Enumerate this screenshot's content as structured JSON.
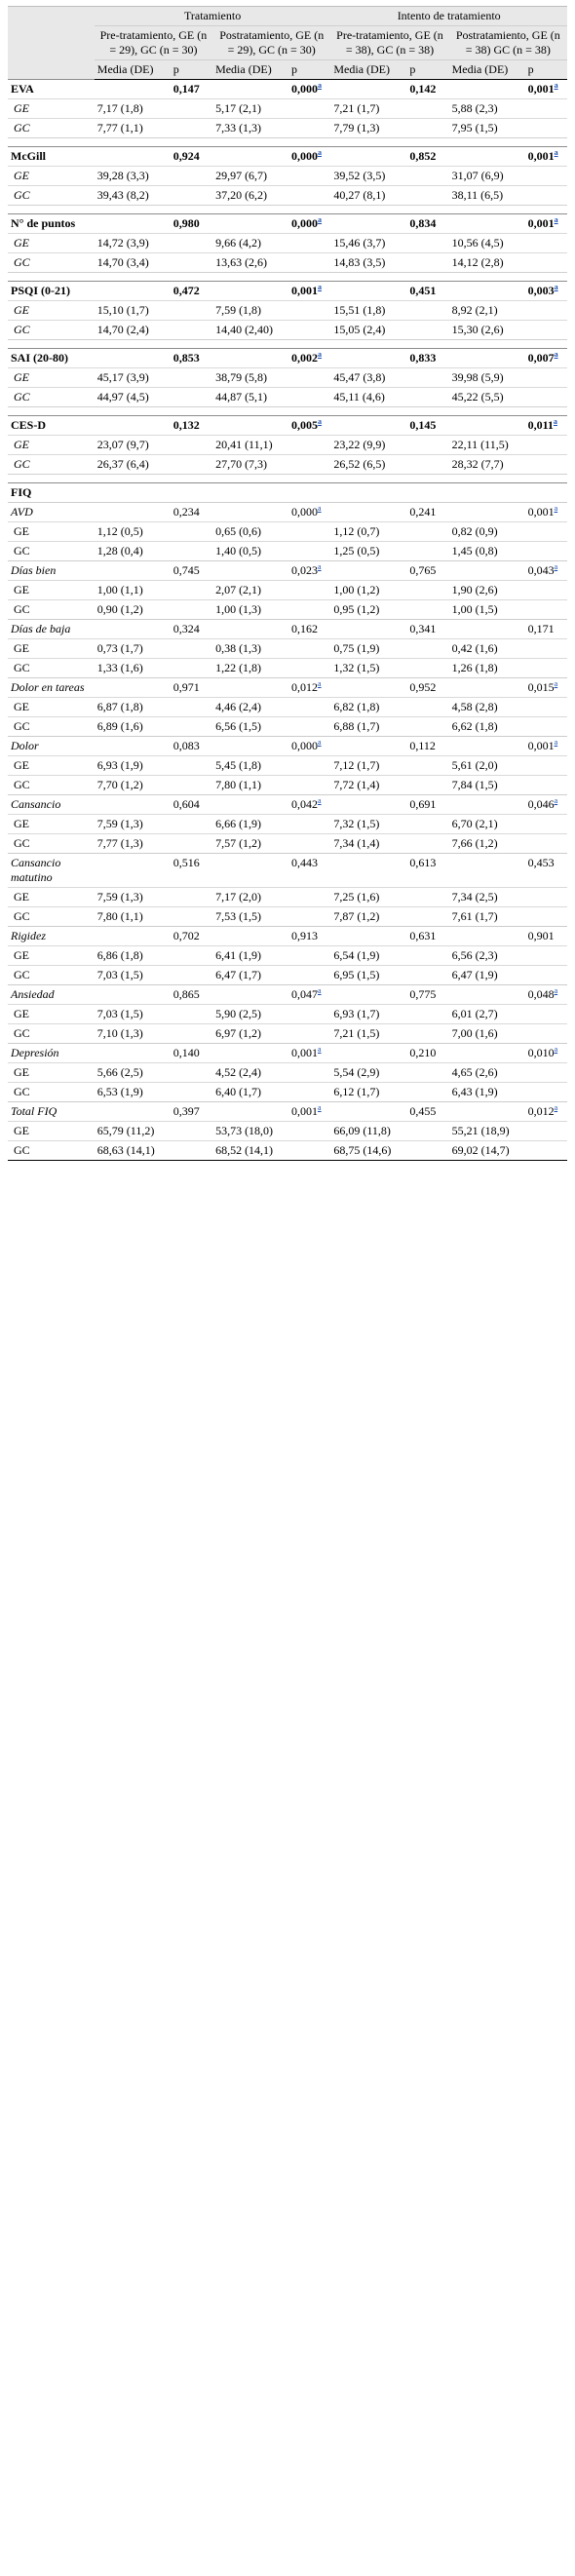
{
  "header": {
    "group_tratamiento": "Tratamiento",
    "group_intento": "Intento de tratamiento",
    "col_pre_trat": "Pre-tratamiento, GE (n = 29), GC (n = 30)",
    "col_post_trat": "Postratamiento, GE (n = 29), GC (n = 30)",
    "col_pre_int": "Pre-tratamiento, GE (n = 38), GC (n = 38)",
    "col_post_int": "Postratamiento, GE (n = 38) GC (n = 38)",
    "media": "Media (DE)",
    "p": "p"
  },
  "footnote_mark": "a",
  "sections": [
    {
      "title": "EVA",
      "p": [
        "0,147",
        "0,000",
        "0,142",
        "0,001"
      ],
      "sig": [
        false,
        true,
        false,
        true
      ],
      "rows": [
        {
          "label": "GE",
          "v": [
            "7,17 (1,8)",
            "5,17 (2,1)",
            "7,21 (1,7)",
            "5,88 (2,3)"
          ]
        },
        {
          "label": "GC",
          "v": [
            "7,77 (1,1)",
            "7,33 (1,3)",
            "7,79 (1,3)",
            "7,95 (1,5)"
          ]
        }
      ]
    },
    {
      "title": "McGill",
      "p": [
        "0,924",
        "0,000",
        "0,852",
        "0,001"
      ],
      "sig": [
        false,
        true,
        false,
        true
      ],
      "rows": [
        {
          "label": "GE",
          "v": [
            "39,28 (3,3)",
            "29,97 (6,7)",
            "39,52 (3,5)",
            "31,07 (6,9)"
          ]
        },
        {
          "label": "GC",
          "v": [
            "39,43 (8,2)",
            "37,20 (6,2)",
            "40,27 (8,1)",
            "38,11 (6,5)"
          ]
        }
      ]
    },
    {
      "title": "N° de puntos",
      "p": [
        "0,980",
        "0,000",
        "0,834",
        "0,001"
      ],
      "sig": [
        false,
        true,
        false,
        true
      ],
      "rows": [
        {
          "label": "GE",
          "v": [
            "14,72 (3,9)",
            "9,66 (4,2)",
            "15,46 (3,7)",
            "10,56 (4,5)"
          ]
        },
        {
          "label": "GC",
          "v": [
            "14,70 (3,4)",
            "13,63 (2,6)",
            "14,83 (3,5)",
            "14,12 (2,8)"
          ]
        }
      ]
    },
    {
      "title": "PSQI (0-21)",
      "p": [
        "0,472",
        "0,001",
        "0,451",
        "0,003"
      ],
      "sig": [
        false,
        true,
        false,
        true
      ],
      "rows": [
        {
          "label": "GE",
          "v": [
            "15,10 (1,7)",
            "7,59 (1,8)",
            "15,51 (1,8)",
            "8,92 (2,1)"
          ]
        },
        {
          "label": "GC",
          "v": [
            "14,70 (2,4)",
            "14,40 (2,40)",
            "15,05 (2,4)",
            "15,30 (2,6)"
          ]
        }
      ]
    },
    {
      "title": "SAI (20-80)",
      "p": [
        "0,853",
        "0,002",
        "0,833",
        "0,007"
      ],
      "sig": [
        false,
        true,
        false,
        true
      ],
      "rows": [
        {
          "label": "GE",
          "v": [
            "45,17 (3,9)",
            "38,79 (5,8)",
            "45,47 (3,8)",
            "39,98 (5,9)"
          ]
        },
        {
          "label": "GC",
          "v": [
            "44,97 (4,5)",
            "44,87 (5,1)",
            "45,11 (4,6)",
            "45,22 (5,5)"
          ]
        }
      ]
    },
    {
      "title": "CES-D",
      "p": [
        "0,132",
        "0,005",
        "0,145",
        "0,011"
      ],
      "sig": [
        false,
        true,
        false,
        true
      ],
      "rows": [
        {
          "label": "GE",
          "v": [
            "23,07 (9,7)",
            "20,41 (11,1)",
            "23,22 (9,9)",
            "22,11 (11,5)"
          ]
        },
        {
          "label": "GC",
          "v": [
            "26,37 (6,4)",
            "27,70 (7,3)",
            "26,52 (6,5)",
            "28,32 (7,7)"
          ]
        }
      ]
    }
  ],
  "fiq": {
    "title": "FIQ",
    "subs": [
      {
        "title": "AVD",
        "p": [
          "0,234",
          "0,000",
          "0,241",
          "0,001"
        ],
        "sig": [
          false,
          true,
          false,
          true
        ],
        "rows": [
          {
            "label": "GE",
            "v": [
              "1,12 (0,5)",
              "0,65 (0,6)",
              "1,12 (0,7)",
              "0,82 (0,9)"
            ]
          },
          {
            "label": "GC",
            "v": [
              "1,28 (0,4)",
              "1,40 (0,5)",
              "1,25 (0,5)",
              "1,45 (0,8)"
            ]
          }
        ]
      },
      {
        "title": "Días bien",
        "p": [
          "0,745",
          "0,023",
          "0,765",
          "0,043"
        ],
        "sig": [
          false,
          true,
          false,
          true
        ],
        "rows": [
          {
            "label": "GE",
            "v": [
              "1,00 (1,1)",
              "2,07 (2,1)",
              "1,00 (1,2)",
              "1,90 (2,6)"
            ]
          },
          {
            "label": "GC",
            "v": [
              "0,90 (1,2)",
              "1,00 (1,3)",
              "0,95 (1,2)",
              "1,00 (1,5)"
            ]
          }
        ]
      },
      {
        "title": "Días de baja",
        "p": [
          "0,324",
          "0,162",
          "0,341",
          "0,171"
        ],
        "sig": [
          false,
          false,
          false,
          false
        ],
        "rows": [
          {
            "label": "GE",
            "v": [
              "0,73 (1,7)",
              "0,38 (1,3)",
              "0,75 (1,9)",
              "0,42 (1,6)"
            ]
          },
          {
            "label": "GC",
            "v": [
              "1,33 (1,6)",
              "1,22 (1,8)",
              "1,32 (1,5)",
              "1,26 (1,8)"
            ]
          }
        ]
      },
      {
        "title": "Dolor en tareas",
        "p": [
          "0,971",
          "0,012",
          "0,952",
          "0,015"
        ],
        "sig": [
          false,
          true,
          false,
          true
        ],
        "rows": [
          {
            "label": "GE",
            "v": [
              "6,87 (1,8)",
              "4,46 (2,4)",
              "6,82 (1,8)",
              "4,58 (2,8)"
            ]
          },
          {
            "label": "GC",
            "v": [
              "6,89 (1,6)",
              "6,56 (1,5)",
              "6,88 (1,7)",
              "6,62 (1,8)"
            ]
          }
        ]
      },
      {
        "title": "Dolor",
        "p": [
          "0,083",
          "0,000",
          "0,112",
          "0,001"
        ],
        "sig": [
          false,
          true,
          false,
          true
        ],
        "rows": [
          {
            "label": "GE",
            "v": [
              "6,93 (1,9)",
              "5,45 (1,8)",
              "7,12 (1,7)",
              "5,61 (2,0)"
            ]
          },
          {
            "label": "GC",
            "v": [
              "7,70 (1,2)",
              "7,80 (1,1)",
              "7,72 (1,4)",
              "7,84 (1,5)"
            ]
          }
        ]
      },
      {
        "title": "Cansancio",
        "p": [
          "0,604",
          "0,042",
          "0,691",
          "0,046"
        ],
        "sig": [
          false,
          true,
          false,
          true
        ],
        "rows": [
          {
            "label": "GE",
            "v": [
              "7,59 (1,3)",
              "6,66 (1,9)",
              "7,32 (1,5)",
              "6,70 (2,1)"
            ]
          },
          {
            "label": "GC",
            "v": [
              "7,77 (1,3)",
              "7,57 (1,2)",
              "7,34 (1,4)",
              "7,66 (1,2)"
            ]
          }
        ]
      },
      {
        "title": "Cansancio matutino",
        "p": [
          "0,516",
          "0,443",
          "0,613",
          "0,453"
        ],
        "sig": [
          false,
          false,
          false,
          false
        ],
        "rows": [
          {
            "label": "GE",
            "v": [
              "7,59 (1,3)",
              "7,17 (2,0)",
              "7,25 (1,6)",
              "7,34 (2,5)"
            ]
          },
          {
            "label": "GC",
            "v": [
              "7,80 (1,1)",
              "7,53 (1,5)",
              "7,87 (1,2)",
              "7,61 (1,7)"
            ]
          }
        ]
      },
      {
        "title": "Rigidez",
        "p": [
          "0,702",
          "0,913",
          "0,631",
          "0,901"
        ],
        "sig": [
          false,
          false,
          false,
          false
        ],
        "rows": [
          {
            "label": "GE",
            "v": [
              "6,86 (1,8)",
              "6,41 (1,9)",
              "6,54 (1,9)",
              "6,56 (2,3)"
            ]
          },
          {
            "label": "GC",
            "v": [
              "7,03 (1,5)",
              "6,47 (1,7)",
              "6,95 (1,5)",
              "6,47 (1,9)"
            ]
          }
        ]
      },
      {
        "title": "Ansiedad",
        "p": [
          "0,865",
          "0,047",
          "0,775",
          "0,048"
        ],
        "sig": [
          false,
          true,
          false,
          true
        ],
        "rows": [
          {
            "label": "GE",
            "v": [
              "7,03 (1,5)",
              "5,90 (2,5)",
              "6,93 (1,7)",
              "6,01 (2,7)"
            ]
          },
          {
            "label": "GC",
            "v": [
              "7,10 (1,3)",
              "6,97 (1,2)",
              "7,21 (1,5)",
              "7,00 (1,6)"
            ]
          }
        ]
      },
      {
        "title": "Depresión",
        "p": [
          "0,140",
          "0,001",
          "0,210",
          "0,010"
        ],
        "sig": [
          false,
          true,
          false,
          true
        ],
        "rows": [
          {
            "label": "GE",
            "v": [
              "5,66 (2,5)",
              "4,52 (2,4)",
              "5,54 (2,9)",
              "4,65 (2,6)"
            ]
          },
          {
            "label": "GC",
            "v": [
              "6,53 (1,9)",
              "6,40 (1,7)",
              "6,12 (1,7)",
              "6,43 (1,9)"
            ]
          }
        ]
      },
      {
        "title": "Total FIQ",
        "p": [
          "0,397",
          "0,001",
          "0,455",
          "0,012"
        ],
        "sig": [
          false,
          true,
          false,
          true
        ],
        "rows": [
          {
            "label": "GE",
            "v": [
              "65,79 (11,2)",
              "53,73 (18,0)",
              "66,09 (11,8)",
              "55,21 (18,9)"
            ]
          },
          {
            "label": "GC",
            "v": [
              "68,63 (14,1)",
              "68,52 (14,1)",
              "68,75 (14,6)",
              "69,02 (14,7)"
            ]
          }
        ]
      }
    ]
  }
}
